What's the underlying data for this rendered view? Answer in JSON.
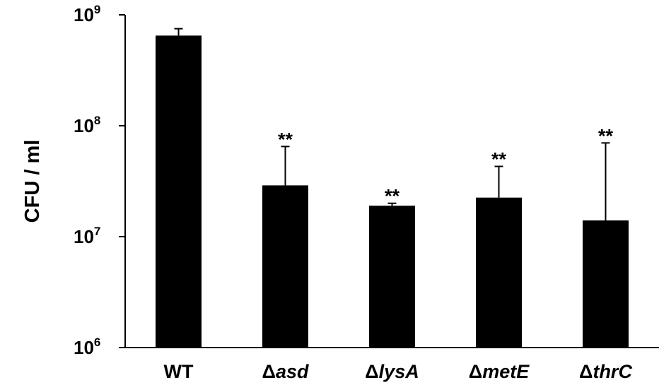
{
  "chart_data": {
    "type": "bar",
    "title": "",
    "xlabel": "",
    "ylabel": "CFU / ml",
    "yscale": "log",
    "ylim": [
      1000000,
      1000000000
    ],
    "yticks": [
      {
        "value": 1000000,
        "base": "10",
        "exp": "6"
      },
      {
        "value": 10000000,
        "base": "10",
        "exp": "7"
      },
      {
        "value": 100000000,
        "base": "10",
        "exp": "8"
      },
      {
        "value": 1000000000,
        "base": "10",
        "exp": "9"
      }
    ],
    "categories": [
      {
        "prefix": "",
        "italic": "",
        "plain": "WT"
      },
      {
        "prefix": "Δ",
        "italic": "asd",
        "plain": ""
      },
      {
        "prefix": "Δ",
        "italic": "lysA",
        "plain": ""
      },
      {
        "prefix": "Δ",
        "italic": "metE",
        "plain": ""
      },
      {
        "prefix": "Δ",
        "italic": "thrC",
        "plain": ""
      }
    ],
    "values": [
      650000000,
      29000000,
      19000000,
      22500000,
      14000000
    ],
    "error_upper": [
      750000000,
      65000000,
      20000000,
      43000000,
      70000000
    ],
    "significance": [
      "",
      "**",
      "**",
      "**",
      "**"
    ],
    "bar_color": "#000000",
    "grid": false,
    "legend": "none"
  }
}
